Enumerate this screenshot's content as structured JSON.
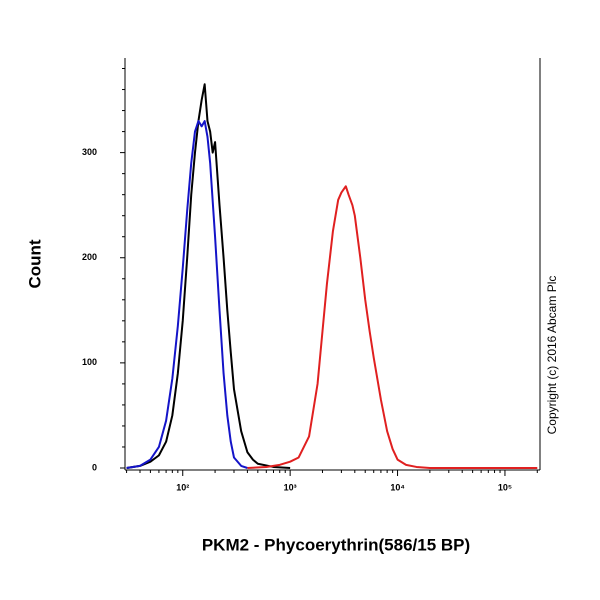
{
  "chart_data": {
    "type": "line",
    "xlabel": "PKM2 - Phycoerythrin(586/15 BP)",
    "ylabel": "Count",
    "annotation": "Copyright (c) 2016 Abcam Plc",
    "xscale": "log",
    "xlim": [
      29,
      212000
    ],
    "ylim": [
      0,
      390
    ],
    "xticks": [
      {
        "value": 100,
        "label": "10²"
      },
      {
        "value": 1000,
        "label": "10³"
      },
      {
        "value": 10000,
        "label": "10⁴"
      },
      {
        "value": 100000,
        "label": "10⁵"
      }
    ],
    "xminorticks": [
      30,
      40,
      50,
      60,
      70,
      80,
      90,
      200,
      300,
      400,
      500,
      600,
      700,
      800,
      900,
      2000,
      3000,
      4000,
      5000,
      6000,
      7000,
      8000,
      9000,
      20000,
      30000,
      40000,
      50000,
      60000,
      70000,
      80000,
      90000,
      200000
    ],
    "yticks": [
      0,
      100,
      200,
      300
    ],
    "yminorticks": [
      20,
      40,
      60,
      80,
      120,
      140,
      160,
      180,
      220,
      240,
      260,
      280,
      320,
      340,
      360,
      380
    ],
    "series": [
      {
        "color": "#000000",
        "x": [
          30,
          40,
          50,
          60,
          70,
          80,
          90,
          100,
          110,
          120,
          130,
          140,
          150,
          160,
          170,
          180,
          190,
          200,
          220,
          240,
          260,
          280,
          300,
          350,
          400,
          450,
          500,
          700,
          1000
        ],
        "values": [
          0,
          2,
          6,
          12,
          25,
          50,
          90,
          140,
          200,
          260,
          300,
          330,
          350,
          365,
          330,
          320,
          300,
          310,
          250,
          200,
          150,
          110,
          75,
          35,
          15,
          8,
          4,
          1,
          0
        ]
      },
      {
        "color": "#1414c8",
        "x": [
          30,
          40,
          50,
          60,
          70,
          80,
          90,
          100,
          110,
          120,
          130,
          140,
          150,
          160,
          170,
          180,
          200,
          220,
          240,
          260,
          280,
          300,
          350,
          400
        ],
        "values": [
          0,
          2,
          8,
          20,
          45,
          85,
          135,
          190,
          245,
          290,
          320,
          330,
          325,
          330,
          315,
          290,
          220,
          150,
          90,
          50,
          25,
          10,
          2,
          0
        ]
      },
      {
        "color": "#e02020",
        "x": [
          400,
          600,
          800,
          1000,
          1200,
          1500,
          1800,
          2000,
          2200,
          2500,
          2800,
          3000,
          3300,
          3500,
          3800,
          4000,
          4500,
          5000,
          5500,
          6000,
          7000,
          8000,
          9000,
          10000,
          12000,
          15000,
          20000,
          50000,
          200000
        ],
        "values": [
          0,
          1,
          3,
          6,
          10,
          30,
          80,
          130,
          175,
          225,
          255,
          262,
          268,
          260,
          250,
          240,
          200,
          160,
          130,
          105,
          65,
          35,
          18,
          8,
          3,
          1,
          0,
          0,
          0
        ]
      }
    ]
  }
}
